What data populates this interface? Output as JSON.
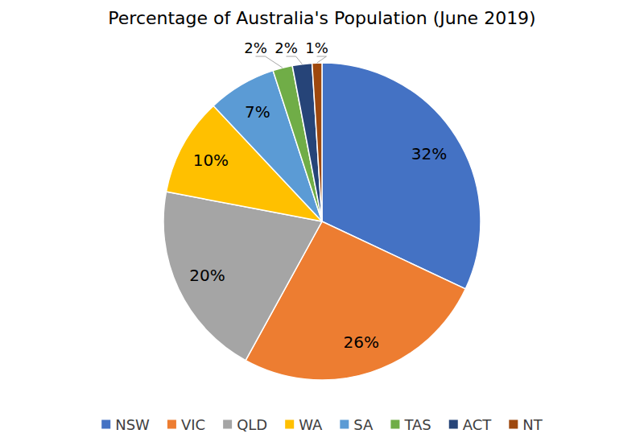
{
  "chart_data": {
    "type": "pie",
    "title": "Percentage of Australia's Population (June 2019)",
    "categories": [
      "NSW",
      "VIC",
      "QLD",
      "WA",
      "SA",
      "TAS",
      "ACT",
      "NT"
    ],
    "values": [
      32,
      26,
      20,
      10,
      7,
      2,
      2,
      1
    ],
    "value_labels": [
      "32%",
      "26%",
      "20%",
      "10%",
      "7%",
      "2%",
      "2%",
      "1%"
    ],
    "colors": [
      "#4472c4",
      "#ed7d31",
      "#a5a5a5",
      "#ffc000",
      "#5b9bd5",
      "#70ad47",
      "#264478",
      "#9e480e"
    ],
    "data_labels": true,
    "legend": "bottom"
  }
}
